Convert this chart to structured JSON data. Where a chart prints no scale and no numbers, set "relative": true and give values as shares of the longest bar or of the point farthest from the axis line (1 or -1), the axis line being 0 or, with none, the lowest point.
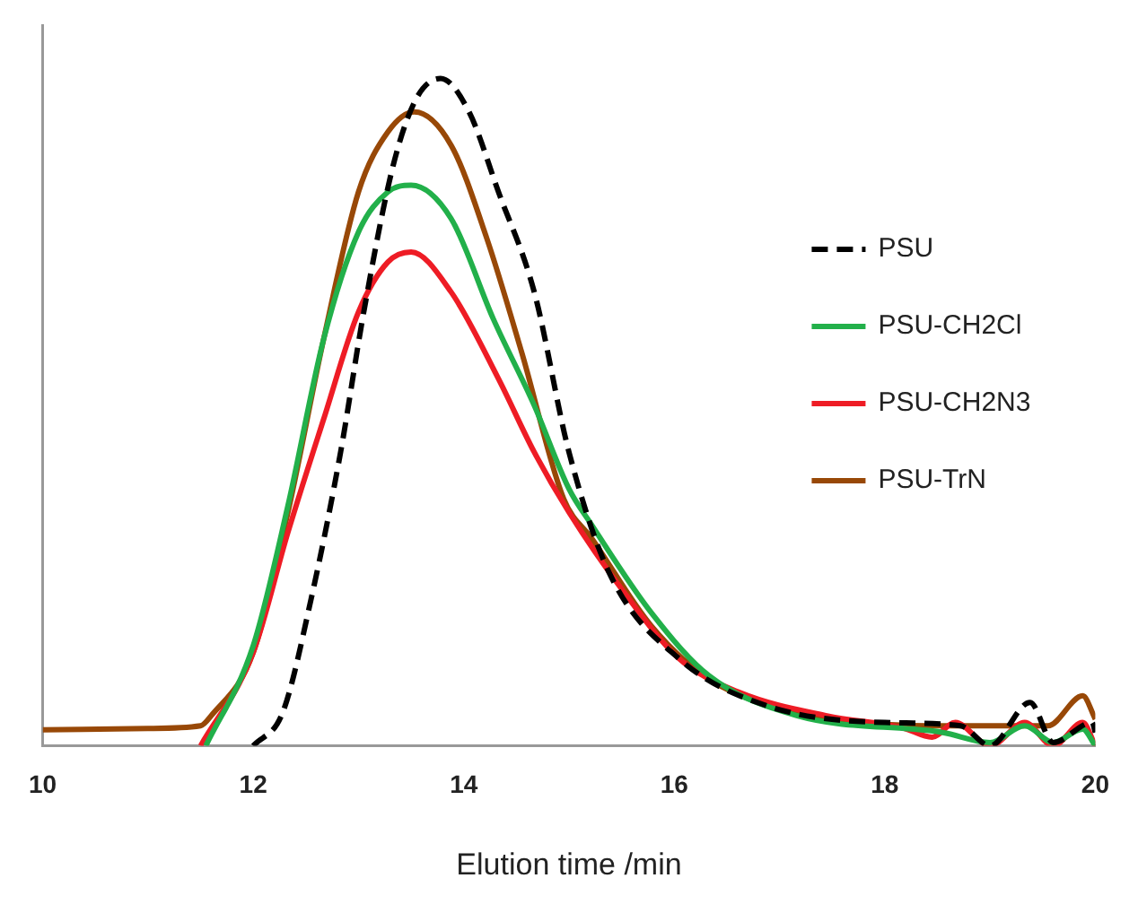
{
  "chart_data": {
    "type": "line",
    "xlabel": "Elution time /min",
    "relative": true,
    "xlim": [
      10,
      20
    ],
    "xticks": [
      10,
      12,
      14,
      16,
      18,
      20
    ],
    "grid": false,
    "legend": "top right",
    "marker": "none",
    "series": [
      {
        "name": "PSU",
        "color": "#000000",
        "line_style": "dashed",
        "x": [
          12,
          12.28,
          12.55,
          12.83,
          13.05,
          13.33,
          13.55,
          13.78,
          14.05,
          14.33,
          14.67,
          15.0,
          15.38,
          16.05,
          16.88,
          18.0,
          18.72,
          19.0,
          19.38,
          19.6,
          19.97,
          20
        ],
        "values": [
          0,
          0.05,
          0.22,
          0.44,
          0.65,
          0.87,
          0.97,
          1.0,
          0.95,
          0.83,
          0.68,
          0.44,
          0.26,
          0.13,
          0.06,
          0.035,
          0.03,
          0,
          0.065,
          0.005,
          0.035,
          0.02
        ]
      },
      {
        "name": "PSU-CH2Cl",
        "color": "#22b04a",
        "line_style": "solid",
        "x": [
          11.55,
          12.0,
          12.33,
          12.67,
          13.0,
          13.28,
          13.5,
          13.88,
          14.28,
          14.67,
          15.0,
          15.22,
          15.78,
          16.33,
          17.17,
          18.55,
          19.0,
          19.33,
          19.6,
          19.88,
          20
        ],
        "values": [
          0,
          0.15,
          0.36,
          0.61,
          0.77,
          0.83,
          0.84,
          0.79,
          0.64,
          0.51,
          0.385,
          0.33,
          0.2,
          0.105,
          0.045,
          0.02,
          0.005,
          0.03,
          0.005,
          0.025,
          0
        ]
      },
      {
        "name": "PSU-CH2N3",
        "color": "#ee1c25",
        "line_style": "solid",
        "x": [
          11.5,
          12.0,
          12.33,
          12.67,
          13.0,
          13.28,
          13.5,
          13.88,
          14.33,
          14.67,
          15.0,
          15.5,
          16.05,
          16.62,
          17.45,
          18.17,
          18.45,
          18.67,
          19.0,
          19.33,
          19.6,
          19.88,
          20
        ],
        "values": [
          0,
          0.14,
          0.32,
          0.49,
          0.65,
          0.725,
          0.74,
          0.68,
          0.55,
          0.44,
          0.35,
          0.235,
          0.13,
          0.08,
          0.045,
          0.027,
          0.013,
          0.035,
          0,
          0.035,
          0,
          0.035,
          0
        ]
      },
      {
        "name": "PSU-TrN",
        "color": "#984807",
        "line_style": "solid",
        "x": [
          10,
          11.0,
          11.5,
          11.6,
          12.0,
          12.33,
          12.67,
          13.0,
          13.28,
          13.53,
          13.88,
          14.22,
          14.55,
          14.95,
          15.22,
          15.78,
          16.33,
          17.17,
          18.55,
          19.55,
          19.88,
          20
        ],
        "values": [
          0.024,
          0.026,
          0.03,
          0.045,
          0.14,
          0.35,
          0.61,
          0.83,
          0.92,
          0.95,
          0.9,
          0.76,
          0.59,
          0.37,
          0.31,
          0.18,
          0.1,
          0.05,
          0.03,
          0.03,
          0.075,
          0.04
        ]
      }
    ]
  }
}
